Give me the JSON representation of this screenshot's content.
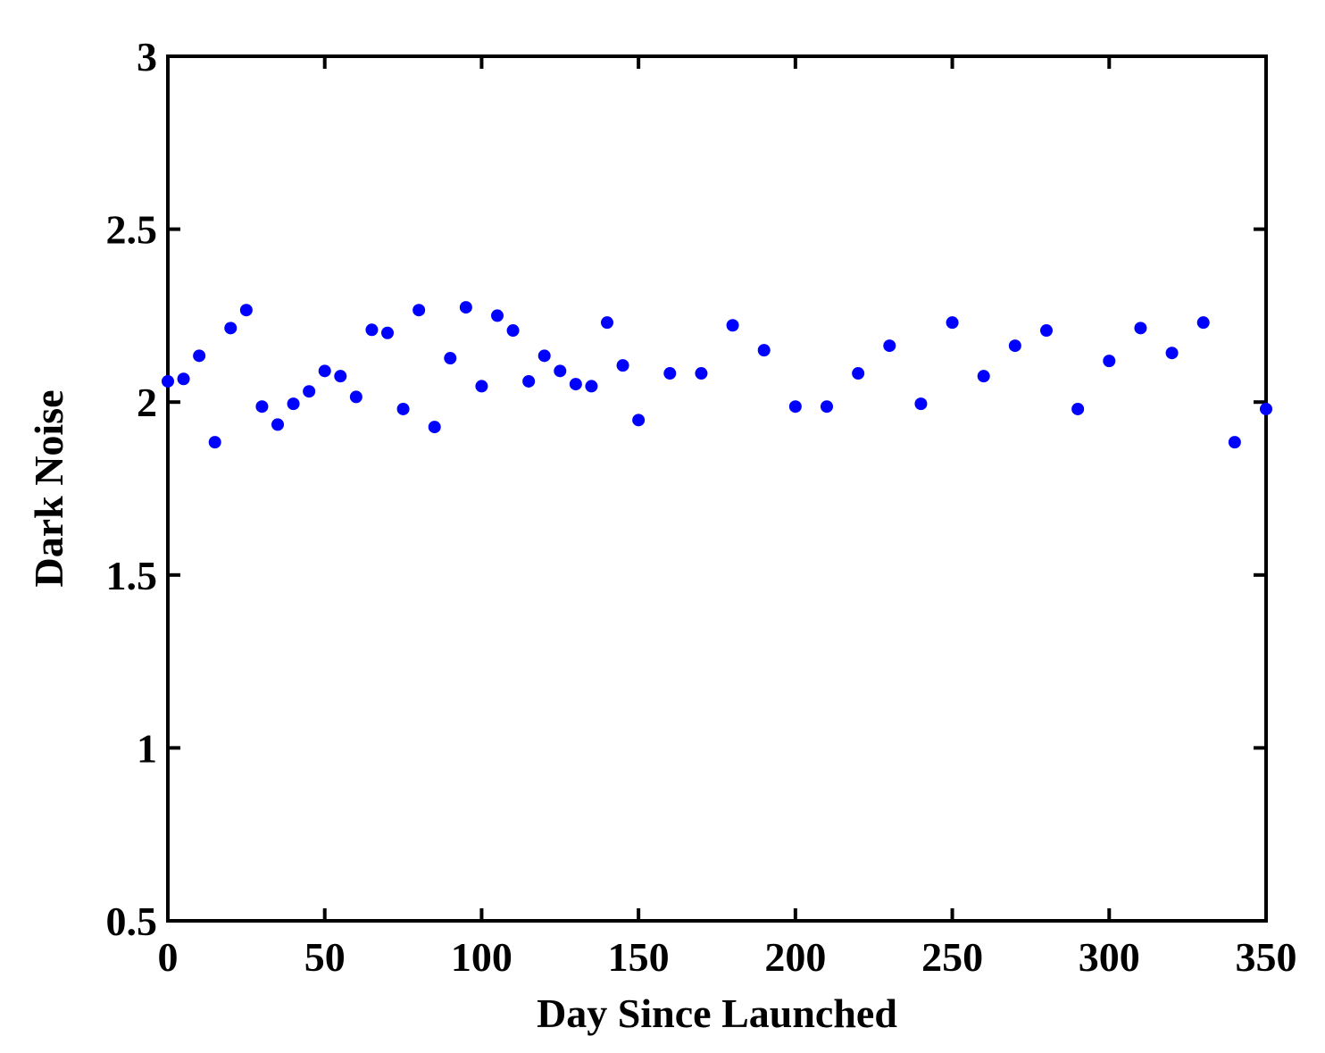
{
  "chart_data": {
    "type": "scatter",
    "xlabel": "Day Since Launched",
    "ylabel": "Dark Noise",
    "color": "#0000ff",
    "xlim": [
      0,
      350
    ],
    "xticks": [
      0,
      50,
      100,
      150,
      200,
      250,
      300,
      350
    ],
    "ylim": [
      0.5,
      3
    ],
    "yticks": [
      0.5,
      1,
      1.5,
      2,
      2.5,
      3
    ],
    "x": [
      0,
      5,
      10,
      15,
      20,
      25,
      30,
      35,
      40,
      45,
      50,
      55,
      60,
      65,
      70,
      75,
      80,
      85,
      90,
      95,
      100,
      105,
      110,
      115,
      120,
      125,
      130,
      135,
      140,
      145,
      150,
      160,
      170,
      180,
      190,
      200,
      210,
      220,
      230,
      240,
      250,
      260,
      270,
      280,
      290,
      300,
      310,
      320,
      330,
      340,
      350
    ],
    "values": [
      2.06,
      2.067,
      2.134,
      1.884,
      2.214,
      2.266,
      1.987,
      1.935,
      1.995,
      2.031,
      2.09,
      2.075,
      2.015,
      2.209,
      2.2,
      1.98,
      2.266,
      1.928,
      2.127,
      2.274,
      2.046,
      2.25,
      2.207,
      2.06,
      2.134,
      2.09,
      2.052,
      2.046,
      2.23,
      2.106,
      1.948,
      2.083,
      2.083,
      2.222,
      2.15,
      1.987,
      1.987,
      2.083,
      2.163,
      1.995,
      2.23,
      2.075,
      2.163,
      2.207,
      1.98,
      2.119,
      2.214,
      2.142,
      2.23,
      1.884,
      1.98
    ]
  }
}
